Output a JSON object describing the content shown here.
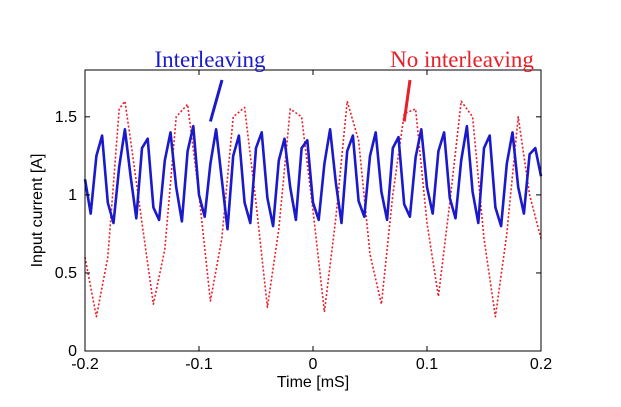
{
  "chart_data": {
    "type": "line",
    "xlabel": "Time [mS]",
    "ylabel": "Input current [A]",
    "xlim": [
      -0.2,
      0.2
    ],
    "ylim": [
      0,
      1.8
    ],
    "xticks": [
      -0.2,
      -0.1,
      0,
      0.1,
      0.2
    ],
    "xtick_labels": [
      "-0.2",
      "-0.1",
      "0",
      "0.1",
      "0.2"
    ],
    "yticks": [
      0,
      0.5,
      1,
      1.5
    ],
    "ytick_labels": [
      "0",
      "0.5",
      "1",
      "1.5"
    ],
    "grid": false,
    "colors": {
      "interleaving": "#1a1acc",
      "no_interleaving": "#e8202a"
    },
    "series": [
      {
        "key": "interleaving",
        "style": "solid",
        "x": [
          -0.2,
          -0.195,
          -0.19,
          -0.185,
          -0.18,
          -0.175,
          -0.17,
          -0.165,
          -0.16,
          -0.155,
          -0.15,
          -0.145,
          -0.14,
          -0.135,
          -0.13,
          -0.125,
          -0.12,
          -0.115,
          -0.11,
          -0.105,
          -0.1,
          -0.095,
          -0.09,
          -0.085,
          -0.08,
          -0.075,
          -0.07,
          -0.065,
          -0.06,
          -0.055,
          -0.05,
          -0.045,
          -0.04,
          -0.035,
          -0.03,
          -0.025,
          -0.02,
          -0.015,
          -0.01,
          -0.005,
          0,
          0.005,
          0.01,
          0.015,
          0.02,
          0.025,
          0.03,
          0.035,
          0.04,
          0.045,
          0.05,
          0.055,
          0.06,
          0.065,
          0.07,
          0.075,
          0.08,
          0.085,
          0.09,
          0.095,
          0.1,
          0.105,
          0.11,
          0.115,
          0.12,
          0.125,
          0.13,
          0.135,
          0.14,
          0.145,
          0.15,
          0.155,
          0.16,
          0.165,
          0.17,
          0.175,
          0.18,
          0.185,
          0.19,
          0.195,
          0.2
        ],
        "y": [
          1.1,
          0.88,
          1.25,
          1.38,
          0.95,
          0.82,
          1.18,
          1.42,
          1.12,
          0.85,
          1.3,
          1.36,
          0.92,
          0.84,
          1.22,
          1.4,
          1.05,
          0.83,
          1.28,
          1.44,
          1.0,
          0.86,
          1.2,
          1.42,
          1.1,
          0.78,
          1.25,
          1.38,
          0.95,
          0.82,
          1.3,
          1.4,
          0.98,
          0.8,
          1.22,
          1.36,
          1.05,
          0.84,
          1.3,
          1.35,
          0.95,
          0.84,
          1.2,
          1.42,
          1.08,
          0.82,
          1.28,
          1.38,
          0.96,
          0.86,
          1.25,
          1.4,
          1.02,
          0.84,
          1.3,
          1.37,
          0.94,
          0.86,
          1.24,
          1.42,
          1.05,
          0.88,
          1.28,
          1.4,
          0.98,
          0.85,
          1.22,
          1.44,
          1.02,
          0.82,
          1.3,
          1.38,
          0.92,
          0.8,
          1.2,
          1.4,
          1.05,
          0.88,
          1.26,
          1.3,
          1.12
        ]
      },
      {
        "key": "no_interleaving",
        "style": "dotted",
        "x": [
          -0.2,
          -0.19,
          -0.18,
          -0.17,
          -0.165,
          -0.16,
          -0.15,
          -0.14,
          -0.13,
          -0.12,
          -0.11,
          -0.1,
          -0.09,
          -0.08,
          -0.07,
          -0.06,
          -0.05,
          -0.04,
          -0.03,
          -0.02,
          -0.01,
          0,
          0.01,
          0.02,
          0.03,
          0.04,
          0.05,
          0.06,
          0.07,
          0.08,
          0.09,
          0.1,
          0.11,
          0.12,
          0.13,
          0.14,
          0.15,
          0.16,
          0.17,
          0.18,
          0.19,
          0.2
        ],
        "y": [
          0.6,
          0.22,
          0.6,
          1.55,
          1.6,
          1.35,
          0.82,
          0.3,
          0.65,
          1.5,
          1.58,
          1.0,
          0.32,
          0.72,
          1.5,
          1.56,
          0.95,
          0.28,
          0.78,
          1.55,
          1.5,
          0.9,
          0.25,
          0.85,
          1.6,
          1.35,
          0.62,
          0.3,
          1.0,
          1.52,
          1.55,
          0.82,
          0.35,
          0.95,
          1.6,
          1.5,
          0.72,
          0.22,
          0.75,
          1.5,
          1.0,
          0.72
        ]
      }
    ],
    "annotations": [
      {
        "text": "Interleaving",
        "series": "interleaving",
        "point": [
          -0.09,
          1.47
        ]
      },
      {
        "text": "No interleaving",
        "series": "no_interleaving",
        "point": [
          0.08,
          1.47
        ]
      }
    ]
  }
}
